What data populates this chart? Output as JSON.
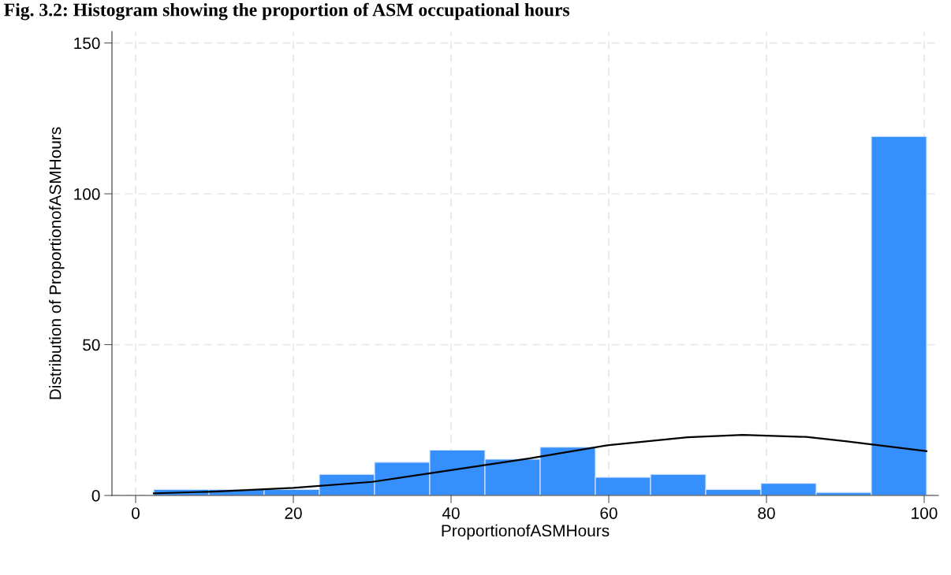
{
  "chart_data": {
    "type": "histogram",
    "title": "Fig. 3.2: Histogram showing the proportion of ASM occupational hours",
    "xlabel": "ProportionofASMHours",
    "ylabel": "Distribution of ProportionofASMHours",
    "bins": [
      2.3,
      9.3,
      16.3,
      23.3,
      30.3,
      37.3,
      44.3,
      51.3,
      58.3,
      65.3,
      72.3,
      79.3,
      86.3,
      93.3,
      100.3
    ],
    "values": [
      2,
      2,
      2,
      7,
      11,
      15,
      12,
      16,
      6,
      7,
      2,
      4,
      1,
      119
    ],
    "color": "#3590fe",
    "series": [
      {
        "type": "line",
        "color": "#000000",
        "x": [
          2.3,
          10,
          20,
          30,
          40,
          50,
          60,
          70,
          77,
          85,
          90,
          100.3
        ],
        "values": [
          0.7,
          1.3,
          2.5,
          4.5,
          8.4,
          12.3,
          16.7,
          19.3,
          20.1,
          19.4,
          18,
          14.7
        ]
      }
    ],
    "xlim": [
      -3,
      101.8
    ],
    "xticks": [
      0,
      20,
      40,
      60,
      80,
      100
    ],
    "ylim": [
      0,
      153.8
    ],
    "yticks": [
      0,
      50,
      100,
      150
    ],
    "grid": true,
    "line_style": "solid"
  }
}
